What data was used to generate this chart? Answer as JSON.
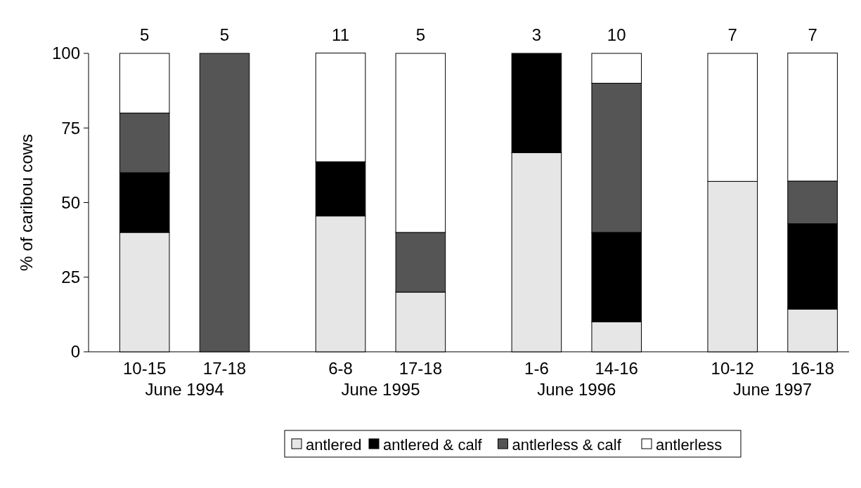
{
  "chart_data": {
    "type": "bar",
    "stacked": true,
    "ylabel": "% of caribou cows",
    "categories": [
      "10-15",
      "17-18",
      "6-8",
      "17-18",
      "1-6",
      "14-16",
      "10-12",
      "16-18"
    ],
    "series": [
      {
        "name": "antlered",
        "color": "#e6e6e6",
        "values": [
          40,
          0,
          45.5,
          20,
          66.7,
          10,
          57.1,
          14.3
        ]
      },
      {
        "name": "antlered & calf",
        "color": "#000000",
        "values": [
          20,
          0,
          18.2,
          0,
          33.3,
          30,
          0,
          28.6
        ]
      },
      {
        "name": "antlerless & calf",
        "color": "#555555",
        "values": [
          20,
          100,
          0,
          20,
          0,
          50,
          0,
          14.3
        ]
      },
      {
        "name": "antlerless",
        "color": "#ffffff",
        "values": [
          20,
          0,
          36.4,
          60,
          0,
          10,
          42.9,
          42.9
        ]
      }
    ],
    "annotations": [
      "5",
      "5",
      "11",
      "5",
      "3",
      "10",
      "7",
      "7",
      "June 1994",
      "June 1995",
      "June 1996",
      "June 1997"
    ],
    "ylim": [
      0,
      100
    ],
    "yticks": [
      0,
      25,
      50,
      75,
      100
    ],
    "legend": "bottom"
  }
}
